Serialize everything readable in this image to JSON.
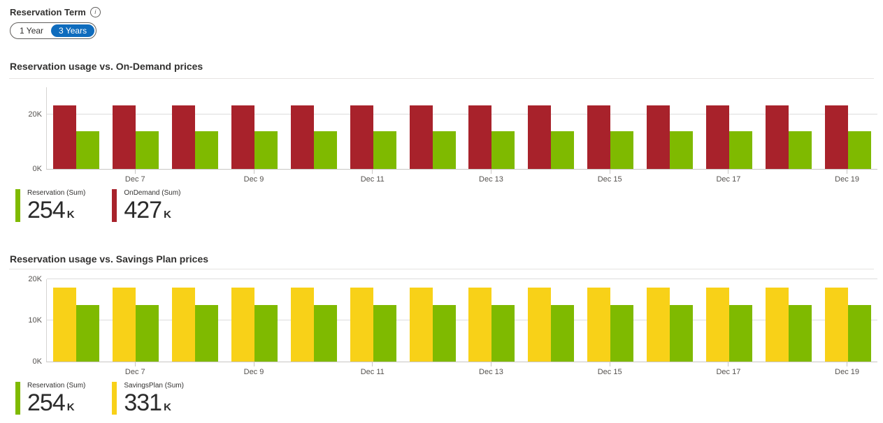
{
  "colors": {
    "accent_blue": "#0f6cbd",
    "bar_red": "#a8222b",
    "bar_green": "#7fba00",
    "bar_yellow": "#f8d118"
  },
  "icons": {
    "info": "i"
  },
  "controls": {
    "reservation_term_label": "Reservation Term",
    "toggle_options": [
      "1 Year",
      "3 Years"
    ],
    "toggle_selected": "3 Years"
  },
  "chart_data": [
    {
      "type": "bar",
      "title": "Reservation usage vs. On-Demand prices",
      "unit": "K",
      "categories": [
        "",
        "Dec 7",
        "",
        "Dec 9",
        "",
        "Dec 11",
        "",
        "Dec 13",
        "",
        "Dec 15",
        "",
        "Dec 17",
        "",
        "Dec 19"
      ],
      "series": [
        {
          "name": "OnDemand",
          "color_key": "bar_red",
          "values": [
            23.3,
            23.3,
            23.3,
            23.3,
            23.3,
            23.3,
            23.3,
            23.3,
            23.3,
            23.3,
            23.3,
            23.3,
            23.3,
            23.3
          ]
        },
        {
          "name": "Reservation",
          "color_key": "bar_green",
          "values": [
            13.8,
            13.8,
            13.8,
            13.8,
            13.8,
            13.8,
            13.8,
            13.8,
            13.8,
            13.8,
            13.8,
            13.8,
            13.8,
            13.8
          ]
        }
      ],
      "ylim": [
        0,
        30
      ],
      "yticks": [
        {
          "value": 0,
          "label": "0K"
        },
        {
          "value": 20,
          "label": "20K"
        }
      ],
      "grid": "horizontal",
      "legend_position": "bottom-left",
      "legend": [
        {
          "label": "Reservation (Sum)",
          "value": "254",
          "unit": "K",
          "color_key": "bar_green"
        },
        {
          "label": "OnDemand (Sum)",
          "value": "427",
          "unit": "K",
          "color_key": "bar_red"
        }
      ]
    },
    {
      "type": "bar",
      "title": "Reservation usage vs. Savings Plan prices",
      "unit": "K",
      "categories": [
        "",
        "Dec 7",
        "",
        "Dec 9",
        "",
        "Dec 11",
        "",
        "Dec 13",
        "",
        "Dec 15",
        "",
        "Dec 17",
        "",
        "Dec 19"
      ],
      "series": [
        {
          "name": "SavingsPlan",
          "color_key": "bar_yellow",
          "values": [
            18,
            18,
            18,
            18,
            18,
            18,
            18,
            18,
            18,
            18,
            18,
            18,
            18,
            18
          ]
        },
        {
          "name": "Reservation",
          "color_key": "bar_green",
          "values": [
            13.8,
            13.8,
            13.8,
            13.8,
            13.8,
            13.8,
            13.8,
            13.8,
            13.8,
            13.8,
            13.8,
            13.8,
            13.8,
            13.8
          ]
        }
      ],
      "ylim": [
        0,
        20
      ],
      "yticks": [
        {
          "value": 0,
          "label": "0K"
        },
        {
          "value": 10,
          "label": "10K"
        },
        {
          "value": 20,
          "label": "20K"
        }
      ],
      "grid": "horizontal",
      "legend_position": "bottom-left",
      "legend": [
        {
          "label": "Reservation (Sum)",
          "value": "254",
          "unit": "K",
          "color_key": "bar_green"
        },
        {
          "label": "SavingsPlan (Sum)",
          "value": "331",
          "unit": "K",
          "color_key": "bar_yellow"
        }
      ]
    }
  ]
}
